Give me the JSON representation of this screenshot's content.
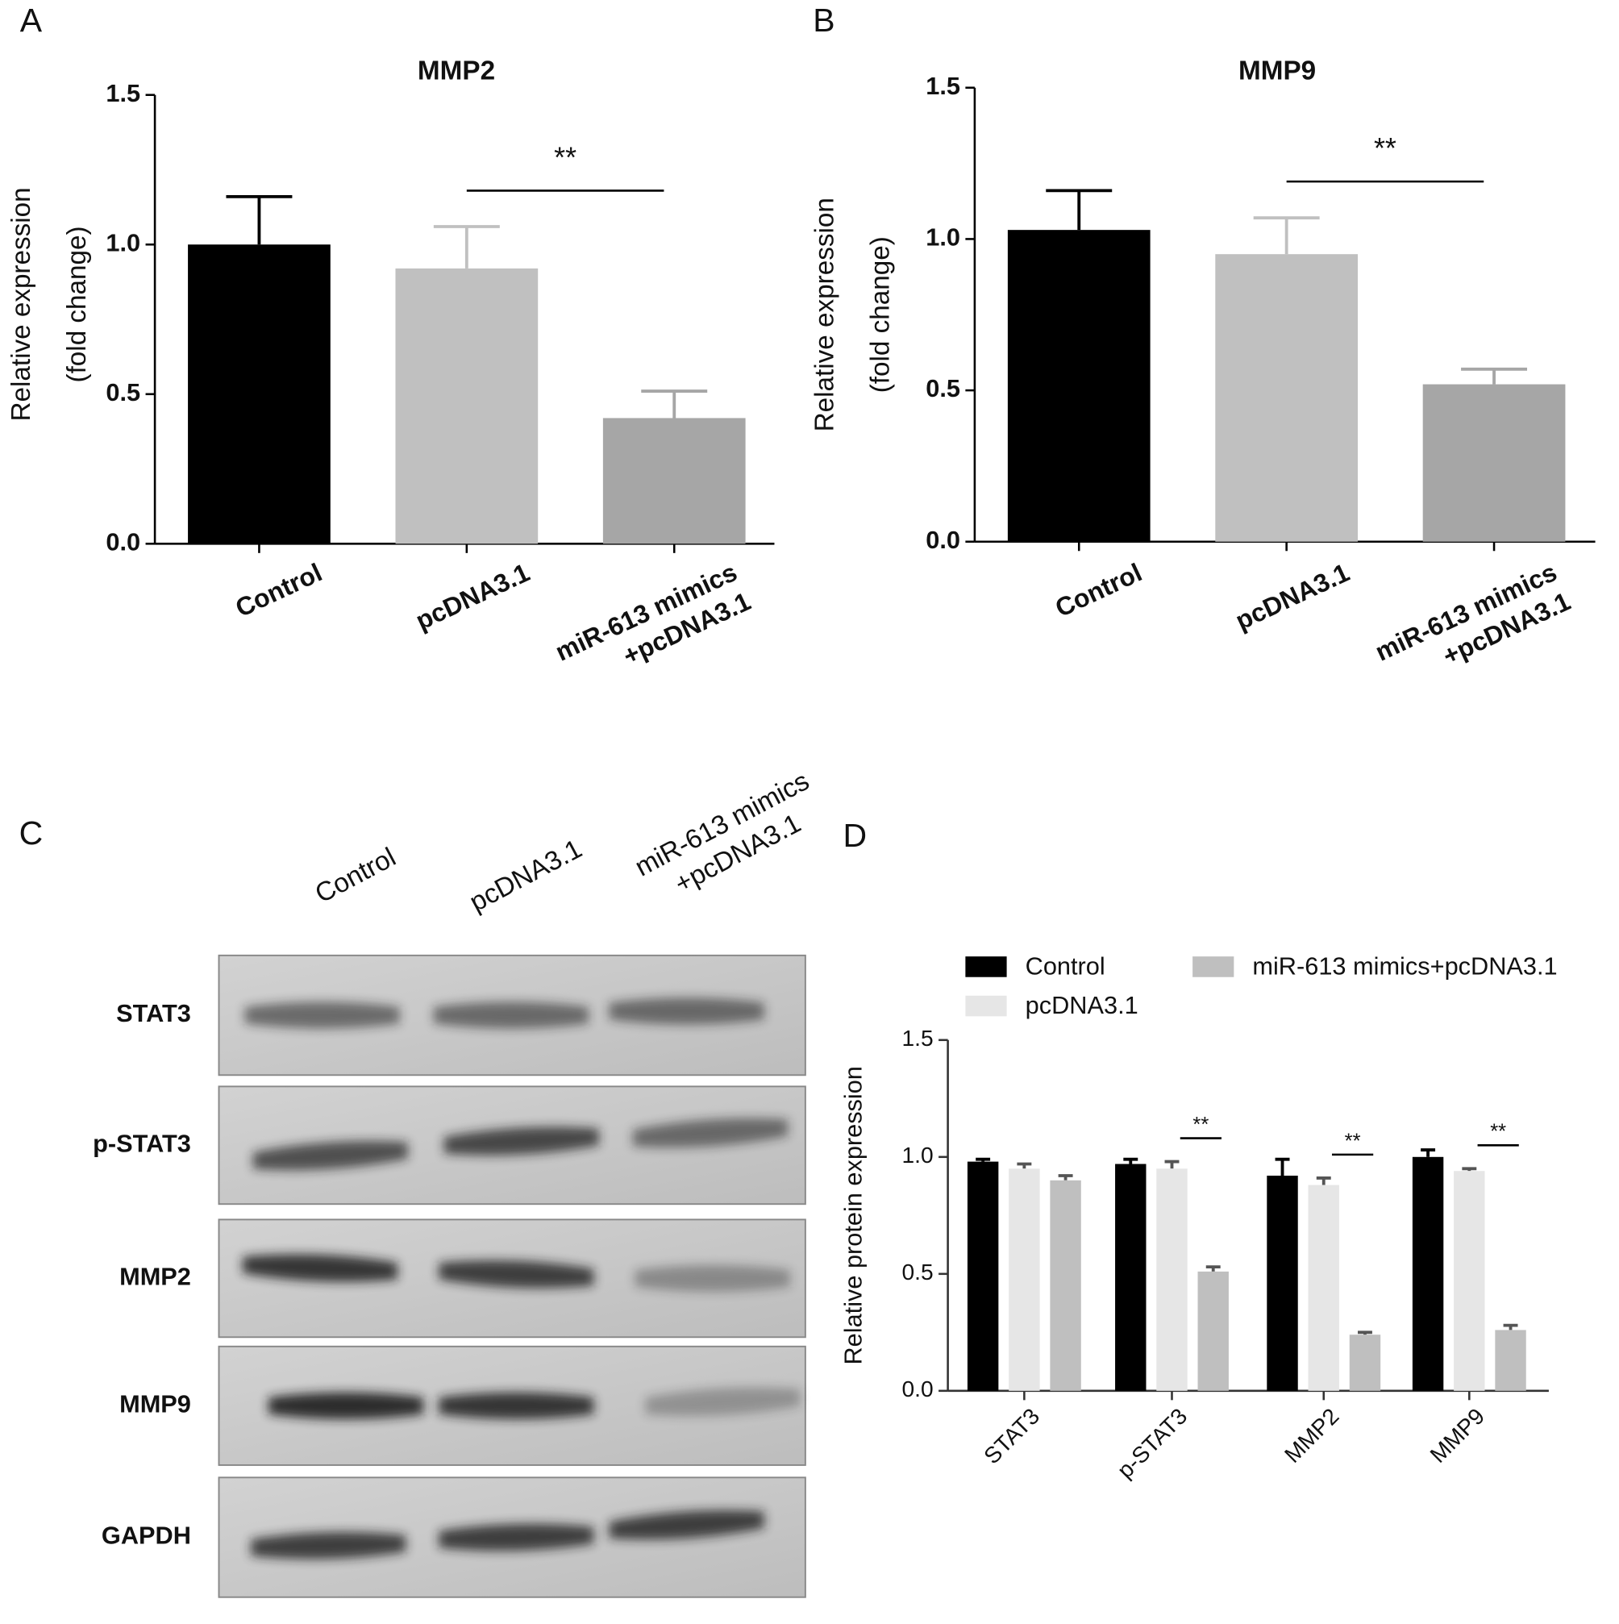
{
  "chart_data": [
    {
      "panel": "A",
      "type": "bar",
      "title": "MMP2",
      "ylabel": [
        "Relative expression",
        "(fold change)"
      ],
      "categories": [
        "Control",
        "pcDNA3.1",
        "miR-613 mimics\n+pcDNA3.1"
      ],
      "values": [
        1.0,
        0.92,
        0.42
      ],
      "errors": [
        0.16,
        0.14,
        0.09
      ],
      "colors": [
        "#000000",
        "#c0c0c0",
        "#a6a6a6"
      ],
      "ylim": [
        0,
        1.5
      ],
      "yticks": [
        {
          "value": 0,
          "label": "0.0"
        },
        {
          "value": 0.5,
          "label": "0.5"
        },
        {
          "value": 1,
          "label": "1.0"
        },
        {
          "value": 1.5,
          "label": "1.5"
        }
      ],
      "annotations": [
        {
          "text": "**",
          "from": 1,
          "to": 2
        }
      ]
    },
    {
      "panel": "B",
      "type": "bar",
      "title": "MMP9",
      "ylabel": [
        "Relative expression",
        "(fold change)"
      ],
      "categories": [
        "Control",
        "pcDNA3.1",
        "miR-613 mimics\n+pcDNA3.1"
      ],
      "values": [
        1.03,
        0.95,
        0.52
      ],
      "errors": [
        0.13,
        0.12,
        0.05
      ],
      "colors": [
        "#000000",
        "#c0c0c0",
        "#a6a6a6"
      ],
      "ylim": [
        0,
        1.5
      ],
      "yticks": [
        {
          "value": 0,
          "label": "0.0"
        },
        {
          "value": 0.5,
          "label": "0.5"
        },
        {
          "value": 1,
          "label": "1.0"
        },
        {
          "value": 1.5,
          "label": "1.5"
        }
      ],
      "annotations": [
        {
          "text": "**",
          "from": 1,
          "to": 2
        }
      ]
    },
    {
      "panel": "D",
      "type": "grouped_bar",
      "ylabel": "Relative protein expression",
      "categories": [
        "STAT3",
        "p-STAT3",
        "MMP2",
        "MMP9"
      ],
      "series": [
        {
          "name": "Control",
          "color": "#000000",
          "values": [
            0.98,
            0.97,
            0.92,
            1.0
          ],
          "errors": [
            0.01,
            0.02,
            0.07,
            0.03
          ]
        },
        {
          "name": "pcDNA3.1",
          "color": "#e6e6e6",
          "values": [
            0.95,
            0.95,
            0.88,
            0.94
          ],
          "errors": [
            0.02,
            0.03,
            0.03,
            0.01
          ]
        },
        {
          "name": "miR-613 mimics+pcDNA3.1",
          "color": "#bfbfbf",
          "values": [
            0.9,
            0.51,
            0.24,
            0.26
          ],
          "errors": [
            0.02,
            0.02,
            0.01,
            0.02
          ]
        }
      ],
      "ylim": [
        0,
        1.5
      ],
      "yticks": [
        {
          "value": 0,
          "label": "0.0"
        },
        {
          "value": 0.5,
          "label": "0.5"
        },
        {
          "value": 1,
          "label": "1.0"
        },
        {
          "value": 1.5,
          "label": "1.5"
        }
      ],
      "annotations": [
        {
          "text": "**",
          "category": 1,
          "from": 1,
          "to": 2
        },
        {
          "text": "**",
          "category": 2,
          "from": 1,
          "to": 2
        },
        {
          "text": "**",
          "category": 3,
          "from": 1,
          "to": 2
        }
      ]
    }
  ],
  "blot": {
    "panel": "C",
    "lanes": [
      "Control",
      "pcDNA3.1",
      "miR-613 mimics\n+pcDNA3.1"
    ],
    "rows": [
      "STAT3",
      "p-STAT3",
      "MMP2",
      "MMP9",
      "GAPDH"
    ]
  }
}
